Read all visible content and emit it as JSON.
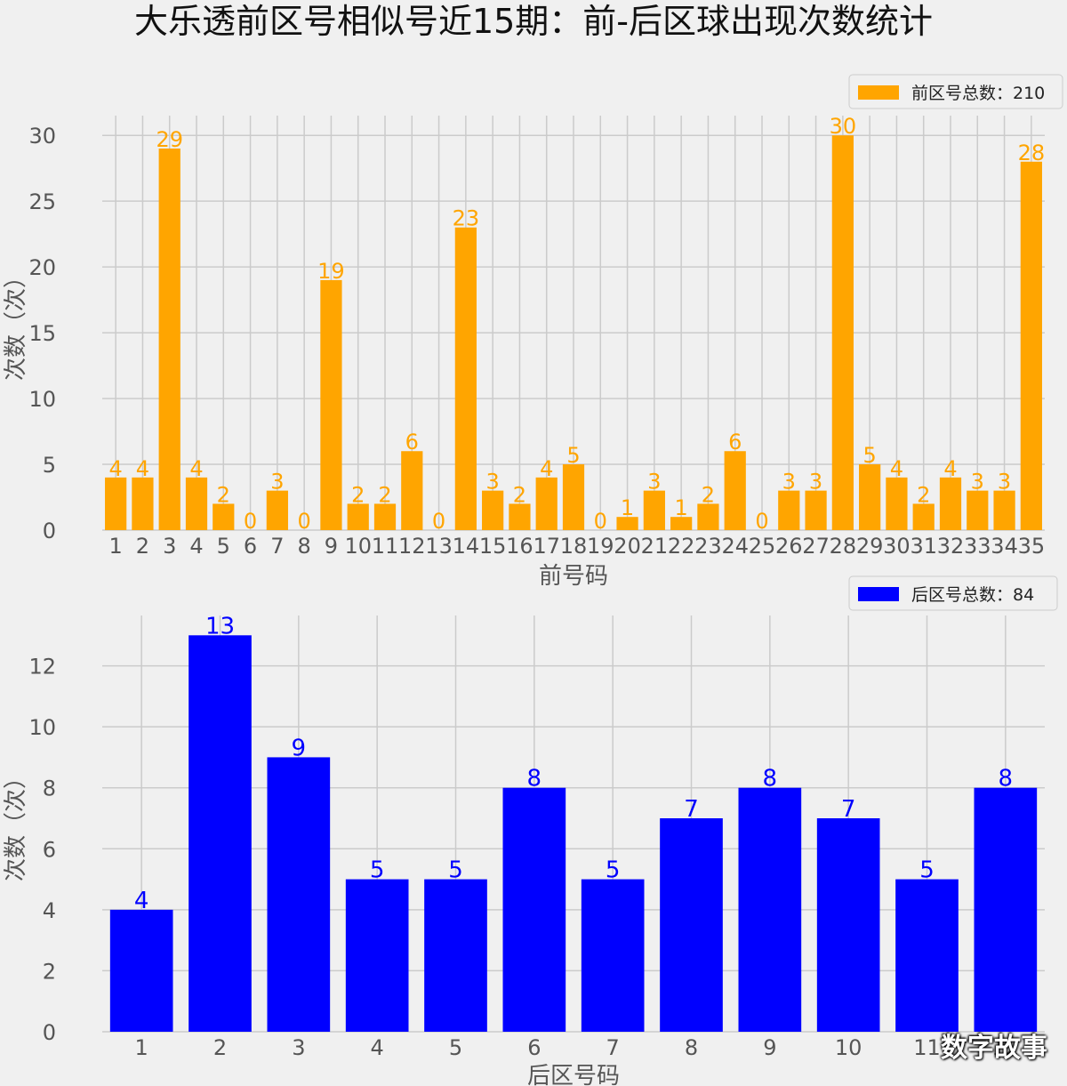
{
  "title": "大乐透前区号相似号近15期：前-后区球出现次数统计",
  "watermark": "数字故事",
  "chart_data": [
    {
      "type": "bar",
      "color": "#ffa500",
      "legend": "前区号总数：210",
      "legend_position": "top-right",
      "grid": true,
      "xlabel": "前号码",
      "ylabel": "次数（次）",
      "ylim": [
        0,
        31.5
      ],
      "yticks": [
        0,
        5,
        10,
        15,
        20,
        25,
        30
      ],
      "categories": [
        "1",
        "2",
        "3",
        "4",
        "5",
        "6",
        "7",
        "8",
        "9",
        "10",
        "11",
        "12",
        "13",
        "14",
        "15",
        "16",
        "17",
        "18",
        "19",
        "20",
        "21",
        "22",
        "23",
        "24",
        "25",
        "26",
        "27",
        "28",
        "29",
        "30",
        "31",
        "32",
        "33",
        "34",
        "35"
      ],
      "values": [
        4,
        4,
        29,
        4,
        2,
        0,
        3,
        0,
        19,
        2,
        2,
        6,
        0,
        23,
        3,
        2,
        4,
        5,
        0,
        1,
        3,
        1,
        2,
        6,
        0,
        3,
        3,
        30,
        5,
        4,
        2,
        4,
        3,
        3,
        28
      ]
    },
    {
      "type": "bar",
      "color": "#0000ff",
      "legend": "后区号总数：84",
      "legend_position": "top-right",
      "grid": true,
      "xlabel": "后区号码",
      "ylabel": "次数（次）",
      "ylim": [
        0,
        13.65
      ],
      "yticks": [
        0,
        2,
        4,
        6,
        8,
        10,
        12
      ],
      "categories": [
        "1",
        "2",
        "3",
        "4",
        "5",
        "6",
        "7",
        "8",
        "9",
        "10",
        "11",
        "12"
      ],
      "values": [
        4,
        13,
        9,
        5,
        5,
        8,
        5,
        7,
        8,
        7,
        5,
        8
      ]
    }
  ]
}
